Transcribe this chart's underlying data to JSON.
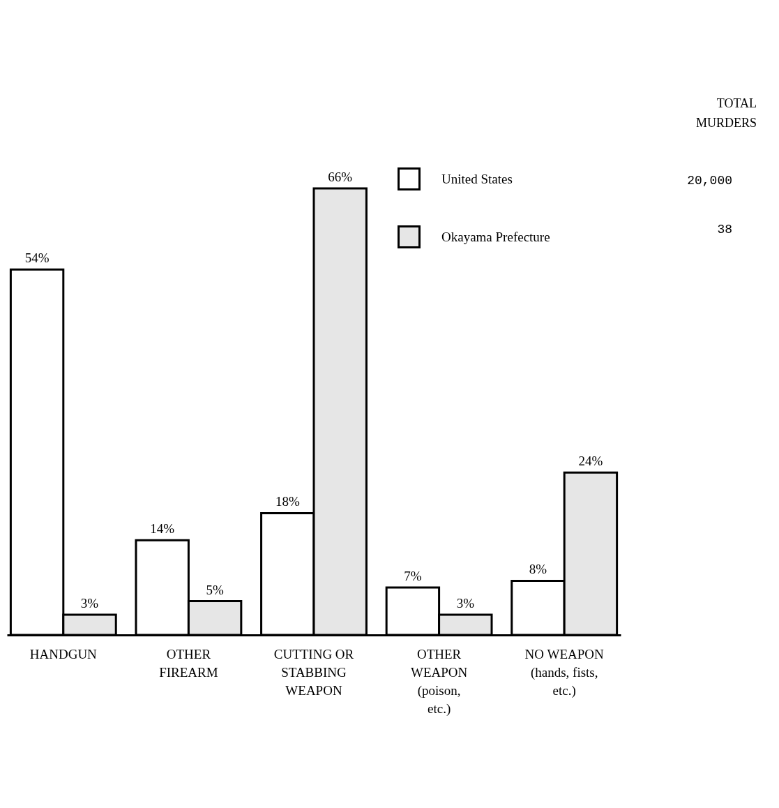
{
  "chart_data": {
    "type": "bar",
    "categories": [
      "HANDGUN",
      "OTHER\nFIREARM",
      "CUTTING OR\nSTABBING\nWEAPON",
      "OTHER\nWEAPON\n(poison,\netc.)",
      "NO WEAPON\n(hands, fists,\netc.)"
    ],
    "series": [
      {
        "name": "United States",
        "color": "#ffffff",
        "values": [
          54,
          14,
          18,
          7,
          8
        ],
        "value_labels": [
          "54%",
          "14%",
          "18%",
          "7%",
          "8%"
        ]
      },
      {
        "name": "Okayama Prefecture",
        "color": "#e6e6e6",
        "values": [
          3,
          5,
          66,
          3,
          24
        ],
        "value_labels": [
          "3%",
          "5%",
          "66%",
          "3%",
          "24%"
        ]
      }
    ],
    "annotations": [
      "TOTAL\nMURDERS",
      "20,000",
      "38"
    ],
    "legend": "top right",
    "grid": false,
    "tick_labels": "x"
  }
}
